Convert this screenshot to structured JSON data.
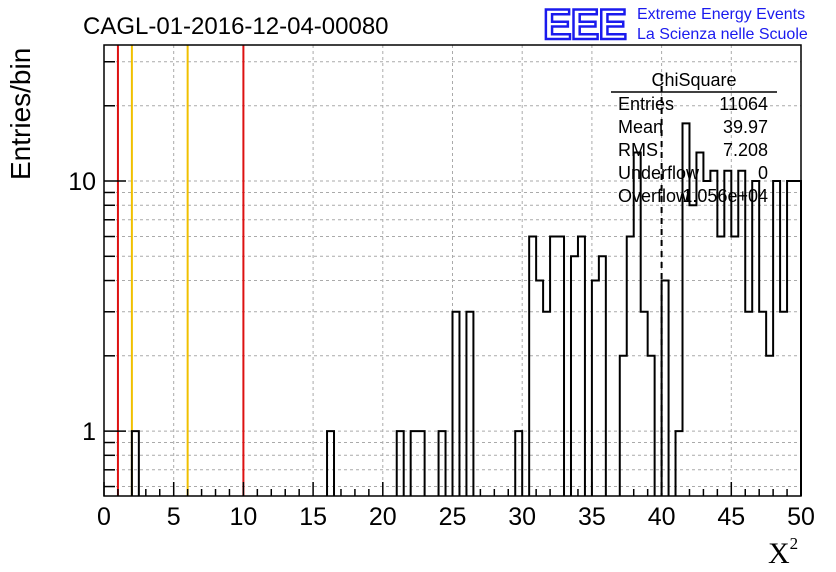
{
  "chart_data": {
    "type": "histogram",
    "title": "CAGL-01-2016-12-04-00080",
    "xlabel": "X",
    "xlabel_superscript": "2",
    "ylabel": "Entries/bin",
    "xlim": [
      0,
      50
    ],
    "ylim": [
      0.55,
      35
    ],
    "y_log": true,
    "grid": true,
    "bin_width": 0.5,
    "x_ticks": [
      "0",
      "5",
      "10",
      "15",
      "20",
      "25",
      "30",
      "35",
      "40",
      "45",
      "50"
    ],
    "y_ticks": [
      "1",
      "10"
    ],
    "bins": [
      [
        2.0,
        1
      ],
      [
        16.0,
        1
      ],
      [
        21.0,
        1
      ],
      [
        22.0,
        1
      ],
      [
        22.5,
        1
      ],
      [
        24.0,
        1
      ],
      [
        25.0,
        3
      ],
      [
        26.0,
        3
      ],
      [
        29.5,
        1
      ],
      [
        30.5,
        6
      ],
      [
        31.0,
        4
      ],
      [
        31.5,
        3
      ],
      [
        32.0,
        6
      ],
      [
        32.5,
        6
      ],
      [
        33.5,
        5
      ],
      [
        34.0,
        6
      ],
      [
        35.0,
        4
      ],
      [
        35.5,
        5
      ],
      [
        37.0,
        2
      ],
      [
        37.5,
        6
      ],
      [
        38.0,
        13
      ],
      [
        38.5,
        3
      ],
      [
        39.0,
        2
      ],
      [
        40.0,
        4
      ],
      [
        41.0,
        1
      ],
      [
        41.5,
        17
      ],
      [
        42.0,
        8
      ],
      [
        42.5,
        13
      ],
      [
        43.0,
        10
      ],
      [
        43.5,
        11
      ],
      [
        44.0,
        6
      ],
      [
        44.5,
        11
      ],
      [
        45.0,
        6
      ],
      [
        45.5,
        11
      ],
      [
        46.0,
        3
      ],
      [
        46.5,
        10
      ],
      [
        47.0,
        3
      ],
      [
        47.5,
        2
      ],
      [
        48.0,
        10
      ],
      [
        48.5,
        3
      ],
      [
        49.0,
        10
      ],
      [
        49.5,
        10
      ]
    ],
    "vertical_lines": [
      {
        "x": 1,
        "color": "#dd1111"
      },
      {
        "x": 2,
        "color": "#f0c000"
      },
      {
        "x": 6,
        "color": "#f0c000"
      },
      {
        "x": 10,
        "color": "#dd1111"
      }
    ],
    "dashed_line": {
      "x": 40
    }
  },
  "stats_box": {
    "title": "ChiSquare",
    "rows": [
      {
        "label": "Entries",
        "value": "11064"
      },
      {
        "label": "Mean",
        "value": "39.97"
      },
      {
        "label": "RMS",
        "value": "7.208"
      },
      {
        "label": "Underflow",
        "value": "0"
      },
      {
        "label": "Overflow",
        "value": "1.056e+04"
      }
    ]
  },
  "logo": {
    "text": "EEE",
    "line1": "Extreme Energy Events",
    "line2": "La Scienza nelle Scuole",
    "color": "#1a1aee"
  },
  "colors": {
    "histogram": "#000000",
    "grid": "#aaaaaa"
  }
}
